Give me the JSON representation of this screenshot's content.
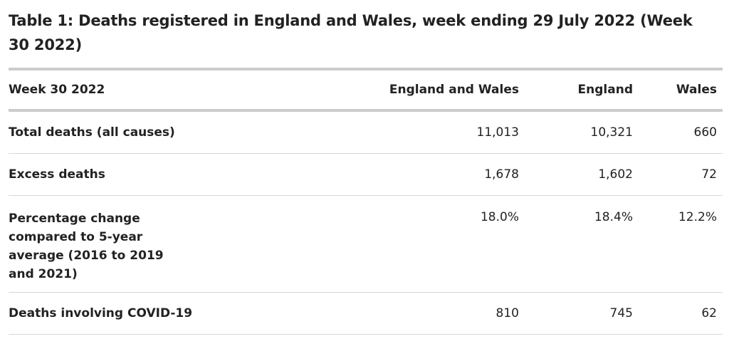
{
  "caption": "Table 1: Deaths registered in England and Wales, week ending 29 July 2022 (Week 30 2022)",
  "headers": [
    "Week 30 2022",
    "England and Wales",
    "England",
    "Wales"
  ],
  "rows": [
    {
      "label": "Total deaths (all causes)",
      "england_and_wales": "11,013",
      "england": "10,321",
      "wales": "660"
    },
    {
      "label": "Excess deaths",
      "england_and_wales": "1,678",
      "england": "1,602",
      "wales": "72"
    },
    {
      "label": "Percentage change compared to 5-year average (2016 to 2019 and 2021)",
      "england_and_wales": "18.0%",
      "england": "18.4%",
      "wales": "12.2%"
    },
    {
      "label": "Deaths involving COVID-19",
      "england_and_wales": "810",
      "england": "745",
      "wales": "62"
    }
  ]
}
